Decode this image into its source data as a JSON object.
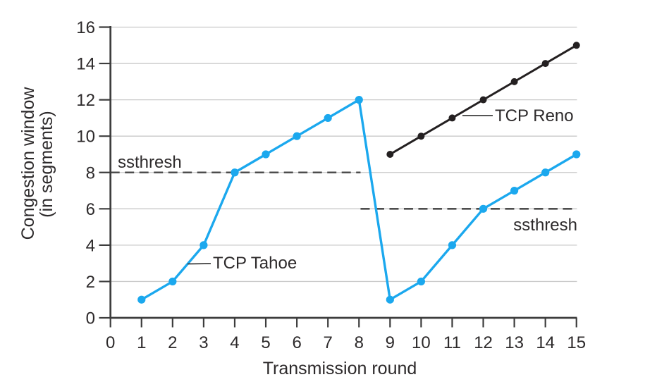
{
  "figure": {
    "background": "#ffffff",
    "text_color": "#2d2a2b",
    "axis_color": "#3d3d3d",
    "grid_color": "#c9c9c9",
    "threshold_color": "#4d4d4d",
    "tahoe_color": "#1BA8EE",
    "reno_color": "#242021"
  },
  "chart_data": {
    "type": "line",
    "title": "",
    "xlabel": "Transmission round",
    "ylabel_lines": [
      "Congestion window",
      "(in segments)"
    ],
    "xlim": [
      0,
      15
    ],
    "ylim": [
      0,
      16
    ],
    "x_ticks": [
      0,
      1,
      2,
      3,
      4,
      5,
      6,
      7,
      8,
      9,
      10,
      11,
      12,
      13,
      14,
      15
    ],
    "y_ticks": [
      0,
      2,
      4,
      6,
      8,
      10,
      12,
      14,
      16
    ],
    "grid": "horizontal gridlines at every y tick, no vertical gridlines",
    "legend_position": "inline callout labels on lines",
    "series": [
      {
        "name": "TCP Tahoe",
        "color": "#1BA8EE",
        "marker": "circle",
        "x": [
          1,
          2,
          3,
          4,
          5,
          6,
          7,
          8,
          9,
          10,
          11,
          12,
          13,
          14,
          15
        ],
        "values": [
          1,
          2,
          4,
          8,
          9,
          10,
          11,
          12,
          1,
          2,
          4,
          6,
          7,
          8,
          9
        ]
      },
      {
        "name": "TCP Reno",
        "color": "#242021",
        "marker": "circle",
        "x": [
          9,
          10,
          11,
          12,
          13,
          14,
          15
        ],
        "values": [
          9,
          10,
          11,
          12,
          13,
          14,
          15
        ]
      }
    ],
    "thresholds": [
      {
        "label": "ssthresh",
        "y": 8,
        "x_start": 0,
        "x_end": 8.05,
        "label_position": "above-left"
      },
      {
        "label": "ssthresh",
        "y": 6,
        "x_start": 8.05,
        "x_end": 15,
        "label_position": "below-right"
      }
    ],
    "annotations": [
      {
        "text": "TCP Tahoe",
        "series": "TCP Tahoe",
        "attach_x": 2.55,
        "attach_y": 3
      },
      {
        "text": "TCP Reno",
        "series": "TCP Reno",
        "attach_x": 11.35,
        "attach_y": 11.1
      }
    ]
  }
}
